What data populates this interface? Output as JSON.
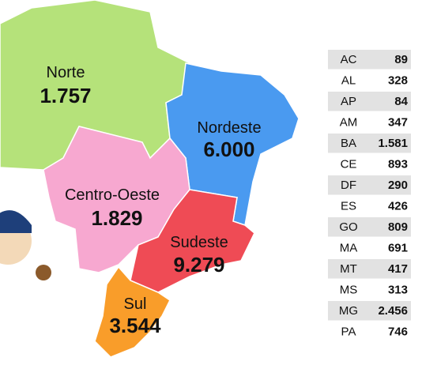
{
  "regions": [
    {
      "name": "Norte",
      "value": "1.757"
    },
    {
      "name": "Nordeste",
      "value": "6.000"
    },
    {
      "name": "Centro-Oeste",
      "value": "1.829"
    },
    {
      "name": "Sudeste",
      "value": "9.279"
    },
    {
      "name": "Sul",
      "value": "3.544"
    }
  ],
  "table": {
    "rows": [
      [
        "AC",
        "89"
      ],
      [
        "AL",
        "328"
      ],
      [
        "AP",
        "84"
      ],
      [
        "AM",
        "347"
      ],
      [
        "BA",
        "1.581"
      ],
      [
        "CE",
        "893"
      ],
      [
        "DF",
        "290"
      ],
      [
        "ES",
        "426"
      ],
      [
        "GO",
        "809"
      ],
      [
        "MA",
        "691"
      ],
      [
        "MT",
        "417"
      ],
      [
        "MS",
        "313"
      ],
      [
        "MG",
        "2.456"
      ],
      [
        "PA",
        "746"
      ]
    ]
  }
}
